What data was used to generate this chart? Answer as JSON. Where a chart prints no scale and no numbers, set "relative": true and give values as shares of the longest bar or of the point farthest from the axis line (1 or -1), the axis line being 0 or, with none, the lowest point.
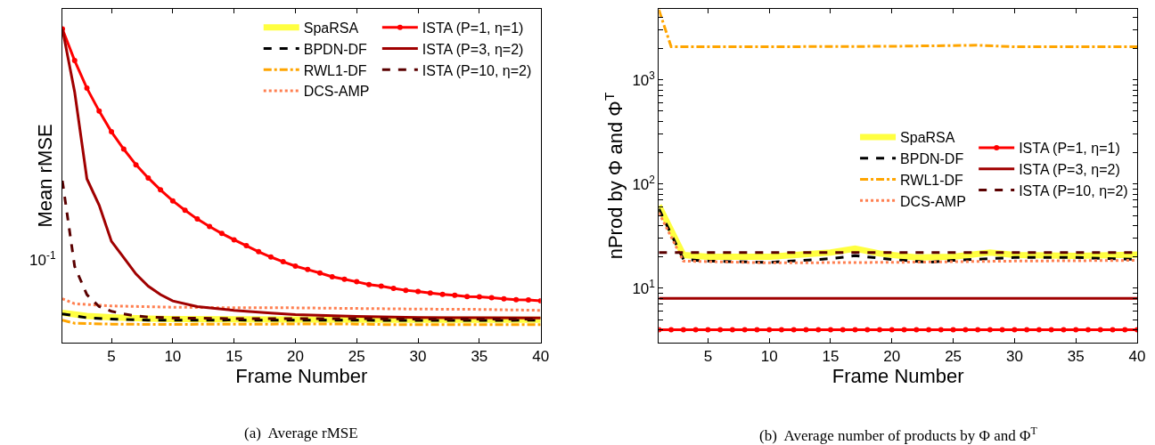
{
  "chart_data": [
    {
      "type": "line",
      "xlabel": "Frame Number",
      "ylabel": "Mean rMSE",
      "relative": true,
      "xlim": [
        1,
        40
      ],
      "xticks": [
        5,
        10,
        15,
        20,
        25,
        30,
        35,
        40
      ],
      "legend": "top right",
      "annotations": [
        "10$^{-1}$",
        "(a)  Average rMSE"
      ],
      "series": [
        {
          "name": "SpaRSA",
          "color": "#ffff40",
          "line_style": "solid",
          "marker": "none",
          "x": [
            1,
            3,
            5,
            8,
            10,
            20,
            30,
            40
          ],
          "values": [
            0.0948,
            0.0853,
            0.0809,
            0.0767,
            0.0753,
            0.0739,
            0.0727,
            0.0727
          ]
        },
        {
          "name": "BPDN-DF",
          "color": "#000000",
          "line_style": "dashed",
          "marker": "none",
          "x": [
            1,
            3,
            5,
            8,
            10,
            15,
            20,
            25,
            30,
            40
          ],
          "values": [
            0.0916,
            0.0794,
            0.0753,
            0.0714,
            0.0714,
            0.0721,
            0.0714,
            0.0714,
            0.0707,
            0.0714
          ]
        },
        {
          "name": "RWL1-DF",
          "color": "#ffa500",
          "line_style": "dashdot",
          "marker": "none",
          "x": [
            1,
            2,
            5,
            8,
            15,
            22,
            25,
            28,
            35,
            40
          ],
          "values": [
            0.0714,
            0.062,
            0.0592,
            0.0582,
            0.0588,
            0.0597,
            0.0592,
            0.0571,
            0.0571,
            0.0576
          ]
        },
        {
          "name": "DCS-AMP",
          "color": "#ff7f50",
          "line_style": "dotted",
          "marker": "none",
          "x": [
            1,
            2,
            5,
            10,
            15,
            20,
            25,
            30,
            35,
            40
          ],
          "values": [
            0.14,
            0.124,
            0.117,
            0.113,
            0.111,
            0.111,
            0.109,
            0.107,
            0.106,
            0.103
          ]
        },
        {
          "name": "ISTA (P=1, η=1)",
          "color": "#ff0000",
          "line_style": "solid",
          "marker": "circle",
          "x": [
            1,
            2,
            3,
            4,
            5,
            6,
            7,
            8,
            9,
            10,
            11,
            12,
            13,
            14,
            15,
            16,
            17,
            18,
            19,
            20,
            21,
            22,
            23,
            24,
            25,
            26,
            27,
            28,
            29,
            30,
            31,
            32,
            33,
            34,
            35,
            36,
            37,
            38,
            39,
            40
          ],
          "values": [
            1,
            0.899,
            0.811,
            0.738,
            0.672,
            0.617,
            0.567,
            0.525,
            0.487,
            0.452,
            0.422,
            0.394,
            0.37,
            0.348,
            0.328,
            0.309,
            0.29,
            0.273,
            0.258,
            0.244,
            0.233,
            0.222,
            0.21,
            0.202,
            0.194,
            0.185,
            0.18,
            0.173,
            0.167,
            0.163,
            0.158,
            0.154,
            0.151,
            0.147,
            0.146,
            0.143,
            0.14,
            0.137,
            0.136,
            0.133
          ]
        },
        {
          "name": "ISTA (P=3, η=2)",
          "color": "#a00000",
          "line_style": "solid",
          "marker": "none",
          "x": [
            1,
            2,
            3,
            4,
            5,
            6,
            7,
            8,
            9,
            10,
            12,
            15,
            18,
            20,
            25,
            30,
            35,
            40
          ],
          "values": [
            1,
            0.799,
            0.522,
            0.438,
            0.323,
            0.271,
            0.219,
            0.18,
            0.153,
            0.133,
            0.115,
            0.103,
            0.094,
            0.0893,
            0.0839,
            0.0801,
            0.0795,
            0.0788
          ]
        },
        {
          "name": "ISTA (P=10, η=2)",
          "color": "#5a0000",
          "line_style": "dashed",
          "marker": "none",
          "x": [
            1,
            2,
            3,
            4,
            5,
            6,
            7,
            8,
            10,
            15,
            25,
            30,
            40
          ],
          "values": [
            0.516,
            0.243,
            0.153,
            0.115,
            0.1,
            0.0916,
            0.0853,
            0.0815,
            0.0788,
            0.0767,
            0.0767,
            0.0753,
            0.0753
          ]
        }
      ]
    },
    {
      "type": "line",
      "xlabel": "Frame Number",
      "ylabel": "nProd by Φ and Φ$^{T}$",
      "log": "y",
      "xlim": [
        1,
        40
      ],
      "xticks": [
        5,
        10,
        15,
        20,
        25,
        30,
        35,
        40
      ],
      "ylim": [
        3,
        4800
      ],
      "yticks": [
        {
          "value": 4,
          "label": null
        },
        {
          "value": 5,
          "label": null
        },
        {
          "value": 6,
          "label": null
        },
        {
          "value": 7,
          "label": null
        },
        {
          "value": 8,
          "label": null
        },
        {
          "value": 9,
          "label": null
        },
        {
          "value": 10,
          "label": "10$^{1}$"
        },
        {
          "value": 20,
          "label": null
        },
        {
          "value": 30,
          "label": null
        },
        {
          "value": 40,
          "label": null
        },
        {
          "value": 50,
          "label": null
        },
        {
          "value": 60,
          "label": null
        },
        {
          "value": 70,
          "label": null
        },
        {
          "value": 80,
          "label": null
        },
        {
          "value": 90,
          "label": null
        },
        {
          "value": 100,
          "label": "10$^{2}$"
        },
        {
          "value": 200,
          "label": null
        },
        {
          "value": 300,
          "label": null
        },
        {
          "value": 400,
          "label": null
        },
        {
          "value": 500,
          "label": null
        },
        {
          "value": 600,
          "label": null
        },
        {
          "value": 700,
          "label": null
        },
        {
          "value": 800,
          "label": null
        },
        {
          "value": 900,
          "label": null
        },
        {
          "value": 1000,
          "label": "10$^{3}$"
        },
        {
          "value": 2000,
          "label": null
        },
        {
          "value": 3000,
          "label": null
        },
        {
          "value": 4000,
          "label": null
        }
      ],
      "legend": "right",
      "annotations": [
        "(b)  Average number of products by Φ and Φ$^{T}$"
      ],
      "series": [
        {
          "name": "SpaRSA",
          "color": "#ffff40",
          "line_style": "solid",
          "marker": "none",
          "x": [
            1,
            3,
            5,
            10,
            15,
            17,
            19,
            22,
            25,
            28,
            30,
            35,
            40
          ],
          "values": [
            62,
            20.8,
            20,
            20,
            22,
            24,
            21.5,
            19.7,
            20,
            22,
            20.8,
            20.4,
            21
          ]
        },
        {
          "name": "BPDN-DF",
          "color": "#000000",
          "line_style": "dashed",
          "marker": "none",
          "x": [
            1,
            2,
            3,
            5,
            10,
            15,
            17,
            20,
            23,
            25,
            30,
            35,
            40
          ],
          "values": [
            57.7,
            33,
            18.9,
            18.2,
            17.7,
            19.2,
            20.5,
            18.9,
            17.7,
            18.5,
            19.7,
            19.7,
            18.9
          ]
        },
        {
          "name": "RWL1-DF",
          "color": "#ffa500",
          "line_style": "dashdot",
          "marker": "none",
          "x": [
            1,
            2,
            5,
            10,
            20,
            27,
            30,
            40
          ],
          "values": [
            4700,
            2080,
            2080,
            2080,
            2100,
            2150,
            2080,
            2080
          ]
        },
        {
          "name": "DCS-AMP",
          "color": "#ff7f50",
          "line_style": "dotted",
          "marker": "none",
          "x": [
            1,
            3,
            10,
            20,
            30,
            40
          ],
          "values": [
            53,
            18.2,
            17.5,
            17.7,
            18.2,
            18.5
          ]
        },
        {
          "name": "ISTA (P=1, η=1)",
          "color": "#ff0000",
          "line_style": "solid",
          "marker": "circle",
          "x": [
            1,
            2,
            3,
            4,
            5,
            6,
            7,
            8,
            9,
            10,
            11,
            12,
            13,
            14,
            15,
            16,
            17,
            18,
            19,
            20,
            21,
            22,
            23,
            24,
            25,
            26,
            27,
            28,
            29,
            30,
            31,
            32,
            33,
            34,
            35,
            36,
            37,
            38,
            39,
            40
          ],
          "values": [
            4,
            4,
            4,
            4,
            4,
            4,
            4,
            4,
            4,
            4,
            4,
            4,
            4,
            4,
            4,
            4,
            4,
            4,
            4,
            4,
            4,
            4,
            4,
            4,
            4,
            4,
            4,
            4,
            4,
            4,
            4,
            4,
            4,
            4,
            4,
            4,
            4,
            4,
            4,
            4
          ]
        },
        {
          "name": "ISTA (P=3, η=2)",
          "color": "#a00000",
          "line_style": "solid",
          "marker": "none",
          "x": [
            1,
            40
          ],
          "values": [
            8,
            8
          ]
        },
        {
          "name": "ISTA (P=10, η=2)",
          "color": "#5a0000",
          "line_style": "dashed",
          "marker": "none",
          "x": [
            1,
            40
          ],
          "values": [
            22,
            22
          ]
        }
      ]
    }
  ]
}
